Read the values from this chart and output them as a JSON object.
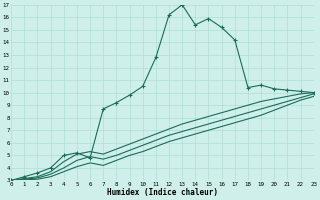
{
  "xlabel": "Humidex (Indice chaleur)",
  "bg_color": "#cff0ea",
  "grid_color": "#b0ddd5",
  "line_color": "#1a6b5a",
  "xlim": [
    0,
    23
  ],
  "ylim": [
    3,
    17
  ],
  "xticks": [
    0,
    1,
    2,
    3,
    4,
    5,
    6,
    7,
    8,
    9,
    10,
    11,
    12,
    13,
    14,
    15,
    16,
    17,
    18,
    19,
    20,
    21,
    22,
    23
  ],
  "yticks": [
    3,
    4,
    5,
    6,
    7,
    8,
    9,
    10,
    11,
    12,
    13,
    14,
    15,
    16,
    17
  ],
  "main_x": [
    0,
    1,
    2,
    3,
    4,
    5,
    6,
    7,
    8,
    9,
    10,
    11,
    12,
    13,
    14,
    15,
    16,
    17,
    18,
    19,
    20,
    21,
    22,
    23
  ],
  "main_y": [
    3.0,
    3.3,
    3.6,
    4.0,
    5.0,
    5.2,
    4.8,
    8.7,
    9.2,
    9.8,
    10.5,
    12.8,
    16.2,
    17.0,
    15.4,
    15.9,
    15.2,
    14.2,
    10.4,
    10.6,
    10.3,
    10.2,
    10.1,
    10.0
  ],
  "line2_x": [
    0,
    1,
    2,
    3,
    4,
    5,
    6,
    7,
    8,
    9,
    10,
    11,
    12,
    13,
    14,
    15,
    16,
    17,
    18,
    19,
    20,
    21,
    22,
    23
  ],
  "line2_y": [
    3.0,
    3.15,
    3.3,
    3.7,
    4.5,
    5.1,
    5.3,
    5.1,
    5.5,
    5.9,
    6.3,
    6.7,
    7.1,
    7.5,
    7.8,
    8.1,
    8.4,
    8.7,
    9.0,
    9.3,
    9.5,
    9.7,
    9.9,
    10.0
  ],
  "line3_x": [
    0,
    1,
    2,
    3,
    4,
    5,
    6,
    7,
    8,
    9,
    10,
    11,
    12,
    13,
    14,
    15,
    16,
    17,
    18,
    19,
    20,
    21,
    22,
    23
  ],
  "line3_y": [
    3.0,
    3.1,
    3.2,
    3.5,
    4.0,
    4.6,
    4.9,
    4.7,
    5.0,
    5.4,
    5.8,
    6.2,
    6.6,
    6.9,
    7.2,
    7.5,
    7.8,
    8.1,
    8.4,
    8.7,
    9.0,
    9.3,
    9.6,
    9.9
  ],
  "line4_x": [
    0,
    1,
    2,
    3,
    4,
    5,
    6,
    7,
    8,
    9,
    10,
    11,
    12,
    13,
    14,
    15,
    16,
    17,
    18,
    19,
    20,
    21,
    22,
    23
  ],
  "line4_y": [
    3.0,
    3.05,
    3.1,
    3.3,
    3.7,
    4.1,
    4.4,
    4.2,
    4.6,
    5.0,
    5.3,
    5.7,
    6.1,
    6.4,
    6.7,
    7.0,
    7.3,
    7.6,
    7.9,
    8.2,
    8.6,
    9.0,
    9.4,
    9.7
  ]
}
